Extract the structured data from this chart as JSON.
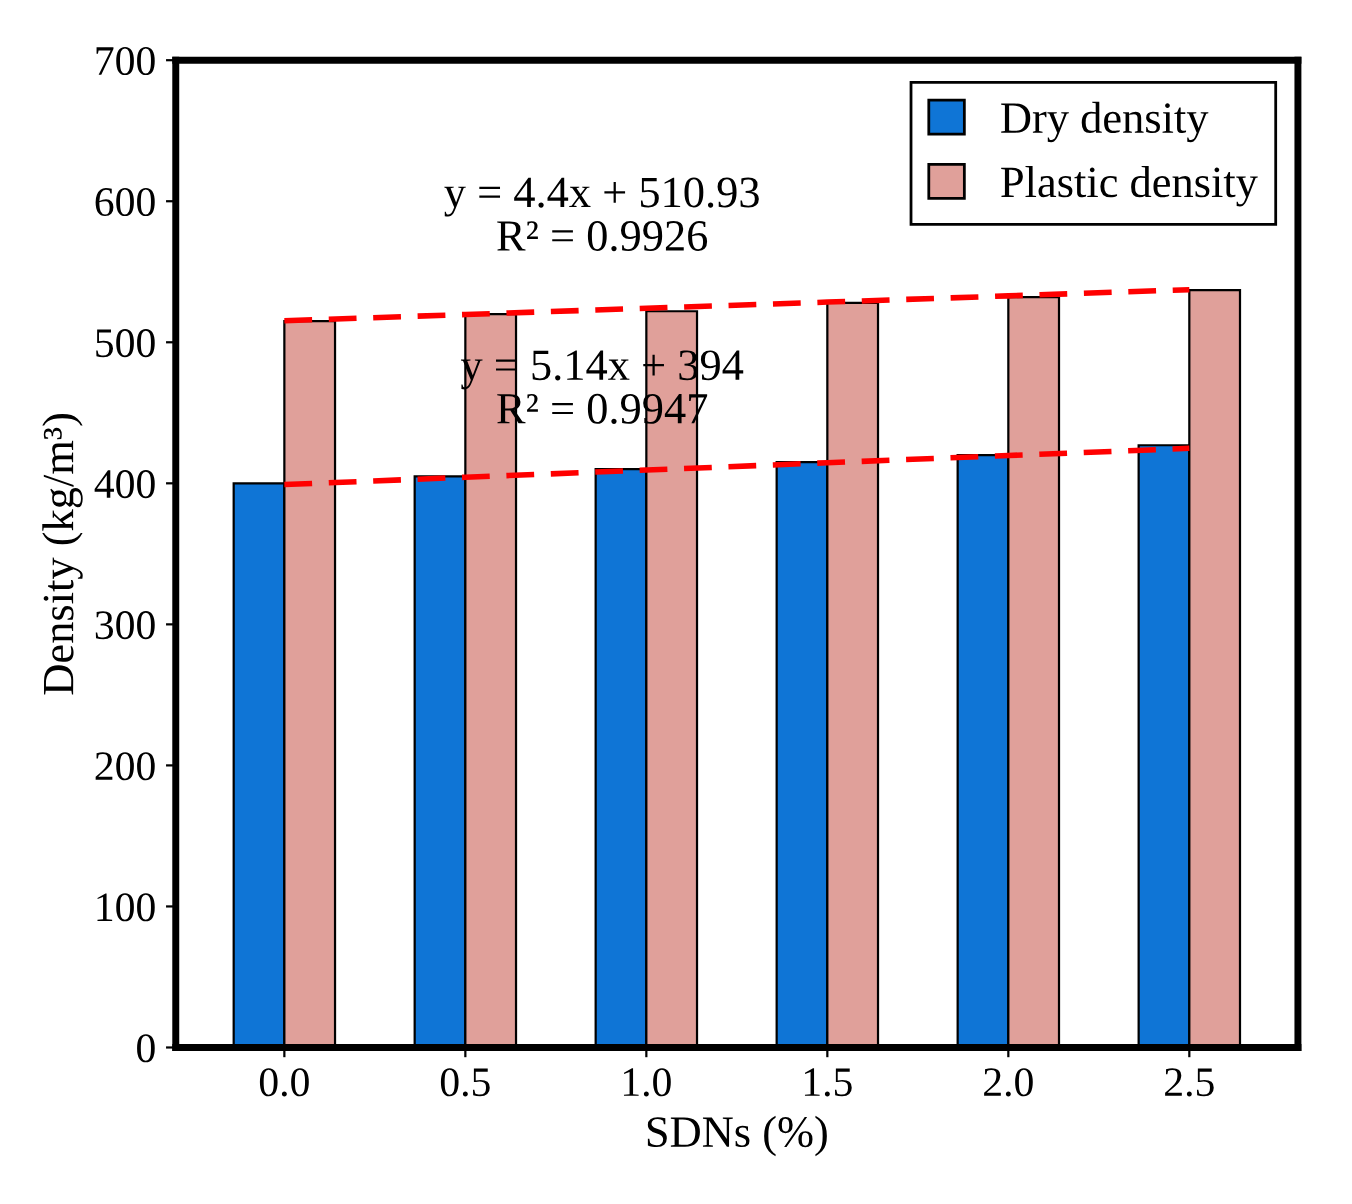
{
  "chart_data": {
    "type": "bar",
    "xlabel": "SDNs (%)",
    "ylabel": "Density (kg/m³)",
    "categories": [
      "0.0",
      "0.5",
      "1.0",
      "1.5",
      "2.0",
      "2.5"
    ],
    "series": [
      {
        "name": "Dry density",
        "color": "#0f75d6",
        "values": [
          400,
          405,
          410,
          415,
          420,
          427
        ]
      },
      {
        "name": "Plastic density",
        "color": "#e0a09a",
        "values": [
          515,
          520,
          522,
          528,
          532,
          537
        ]
      },
      {
        "type": "line",
        "color": "#ff0000",
        "line_style": "dashed",
        "x": [
          "0.0",
          "0.5",
          "1.0",
          "1.5",
          "2.0",
          "2.5"
        ],
        "values": [
          515.3,
          519.7,
          524.1,
          528.5,
          532.9,
          537.3
        ]
      },
      {
        "type": "line",
        "color": "#ff0000",
        "line_style": "dashed",
        "x": [
          "0.0",
          "0.5",
          "1.0",
          "1.5",
          "2.0",
          "2.5"
        ],
        "values": [
          399.1,
          404.3,
          409.4,
          414.6,
          419.7,
          424.8
        ]
      }
    ],
    "annotations": [
      "y = 4.4x + 510.93\nR² = 0.9926",
      "y = 5.14x + 394\nR² = 0.9947"
    ],
    "ylim": [
      0,
      700
    ],
    "yticks": [
      0,
      100,
      200,
      300,
      400,
      500,
      600,
      700
    ],
    "grid": false,
    "legend": "top right"
  }
}
